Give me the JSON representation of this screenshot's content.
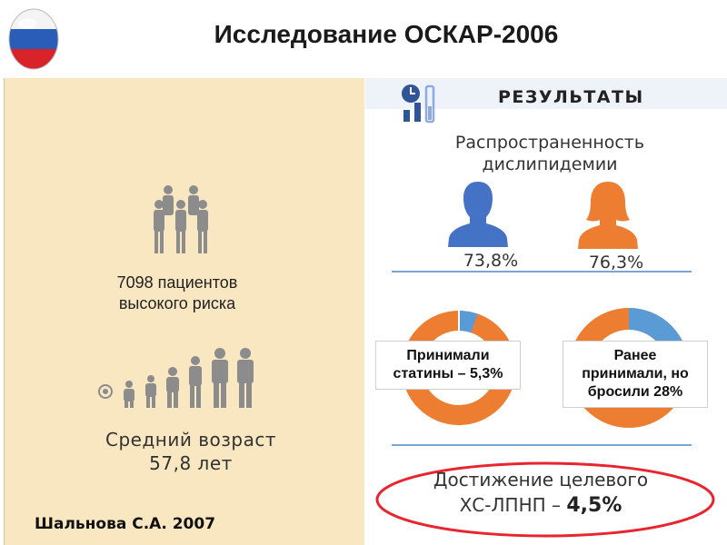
{
  "title": "Исследование ОСКАР-2006",
  "flag_colors": [
    "#ffffff",
    "#2a5db8",
    "#d8232a"
  ],
  "icons": {
    "flag": "russia-flag-icon",
    "patients": "group-people-icon",
    "age": "age-progression-icon",
    "results": "clock-bar-chart-icon",
    "men": "male-silhouette-icon",
    "women": "female-silhouette-icon"
  },
  "left": {
    "patients_line1": "7098 пациентов",
    "patients_line2": "высокого риска",
    "age_line1": "Средний возраст",
    "age_line2": "57,8  лет",
    "author": "Шальнова С.А. 2007"
  },
  "results": {
    "heading": "РЕЗУЛЬТАТЫ",
    "prevalence_line1": "Распространенность",
    "prevalence_line2": "дислипидемии",
    "men_pct": "73,8%",
    "women_pct": "76,3%",
    "men_color": "#4472c4",
    "women_color": "#ed7d31",
    "donuts": [
      {
        "line1": "Принимали",
        "line2": "статины – 5,3%",
        "value": 5.3,
        "accent": "#5b9bd5",
        "base": "#ed7d31"
      },
      {
        "line1": "Ранее",
        "line2": "принимали, но",
        "line3": "бросили 28%",
        "value": 28,
        "accent": "#5b9bd5",
        "base": "#ed7d31"
      }
    ],
    "target_line1": "Достижение целевого",
    "target_prefix": "ХС-ЛПНП – ",
    "target_value": "4,5%",
    "ellipse_color": "#e8252f"
  }
}
